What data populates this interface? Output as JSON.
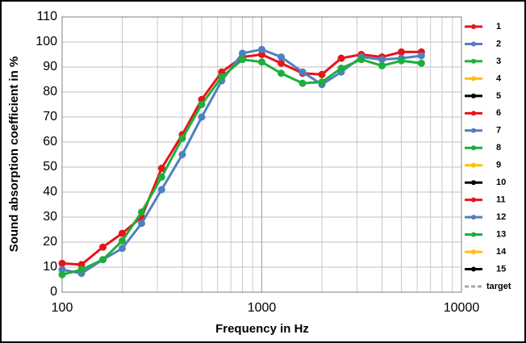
{
  "chart_data": {
    "type": "line",
    "xlabel": "Frequency in Hz",
    "ylabel": "Sound absorption coefficient in %",
    "x": [
      100,
      125,
      160,
      200,
      250,
      315,
      400,
      500,
      630,
      800,
      1000,
      1250,
      1600,
      2000,
      2500,
      3150,
      4000,
      5000,
      6300
    ],
    "series": [
      {
        "name": "1",
        "color": "#e8141c",
        "values": [
          11.5,
          11,
          18,
          23.5,
          30,
          49.5,
          63,
          77,
          88,
          94,
          95,
          91.5,
          87.5,
          87,
          93.5,
          95,
          94,
          96,
          96
        ]
      },
      {
        "name": "2",
        "color": "#4f81bd",
        "values": [
          9,
          7.5,
          13,
          17.5,
          27.5,
          41,
          55,
          70,
          84.5,
          95.5,
          97,
          94,
          88,
          83,
          88,
          94,
          93,
          93.5,
          94.5
        ]
      },
      {
        "name": "3",
        "color": "#1fae3c",
        "values": [
          7,
          9,
          13,
          20.5,
          32,
          46,
          61.5,
          75,
          86,
          93,
          92,
          87.5,
          83.5,
          84,
          89.5,
          93,
          90.5,
          92.5,
          91.5
        ]
      },
      {
        "name": "4",
        "color": "#ffc000",
        "values": [
          null,
          null,
          null,
          null,
          null,
          null,
          null,
          null,
          null,
          null,
          null,
          null,
          null,
          null,
          null,
          null,
          null,
          null,
          null
        ]
      },
      {
        "name": "5",
        "color": "#000000",
        "values": [
          null,
          null,
          null,
          null,
          null,
          null,
          null,
          null,
          null,
          null,
          null,
          null,
          null,
          null,
          null,
          null,
          null,
          null,
          null
        ]
      },
      {
        "name": "6",
        "color": "#e8141c",
        "values": [
          null,
          null,
          null,
          null,
          null,
          null,
          null,
          null,
          null,
          null,
          null,
          null,
          null,
          null,
          null,
          null,
          null,
          null,
          null
        ]
      },
      {
        "name": "7",
        "color": "#4f81bd",
        "values": [
          null,
          null,
          null,
          null,
          null,
          null,
          null,
          null,
          null,
          null,
          null,
          null,
          null,
          null,
          null,
          null,
          null,
          null,
          null
        ]
      },
      {
        "name": "8",
        "color": "#1fae3c",
        "values": [
          null,
          null,
          null,
          null,
          null,
          null,
          null,
          null,
          null,
          null,
          null,
          null,
          null,
          null,
          null,
          null,
          null,
          null,
          null
        ]
      },
      {
        "name": "9",
        "color": "#ffc000",
        "values": [
          null,
          null,
          null,
          null,
          null,
          null,
          null,
          null,
          null,
          null,
          null,
          null,
          null,
          null,
          null,
          null,
          null,
          null,
          null
        ]
      },
      {
        "name": "10",
        "color": "#000000",
        "values": [
          null,
          null,
          null,
          null,
          null,
          null,
          null,
          null,
          null,
          null,
          null,
          null,
          null,
          null,
          null,
          null,
          null,
          null,
          null
        ]
      },
      {
        "name": "11",
        "color": "#e8141c",
        "values": [
          null,
          null,
          null,
          null,
          null,
          null,
          null,
          null,
          null,
          null,
          null,
          null,
          null,
          null,
          null,
          null,
          null,
          null,
          null
        ]
      },
      {
        "name": "12",
        "color": "#4f81bd",
        "values": [
          null,
          null,
          null,
          null,
          null,
          null,
          null,
          null,
          null,
          null,
          null,
          null,
          null,
          null,
          null,
          null,
          null,
          null,
          null
        ]
      },
      {
        "name": "13",
        "color": "#1fae3c",
        "values": [
          null,
          null,
          null,
          null,
          null,
          null,
          null,
          null,
          null,
          null,
          null,
          null,
          null,
          null,
          null,
          null,
          null,
          null,
          null
        ]
      },
      {
        "name": "14",
        "color": "#ffc000",
        "values": [
          null,
          null,
          null,
          null,
          null,
          null,
          null,
          null,
          null,
          null,
          null,
          null,
          null,
          null,
          null,
          null,
          null,
          null,
          null
        ]
      },
      {
        "name": "15",
        "color": "#000000",
        "values": [
          null,
          null,
          null,
          null,
          null,
          null,
          null,
          null,
          null,
          null,
          null,
          null,
          null,
          null,
          null,
          null,
          null,
          null,
          null
        ]
      },
      {
        "name": "target",
        "color": "#a6a6a6",
        "dashed": true,
        "values": [
          null,
          null,
          null,
          null,
          null,
          null,
          null,
          null,
          null,
          null,
          null,
          null,
          null,
          null,
          null,
          null,
          null,
          null,
          null
        ]
      }
    ],
    "xscale": "log",
    "xlim": [
      100,
      10000
    ],
    "xticks": [
      100,
      1000,
      10000
    ],
    "xminorticks": [
      200,
      300,
      400,
      500,
      600,
      700,
      800,
      900,
      2000,
      3000,
      4000,
      5000,
      6000,
      7000,
      8000,
      9000
    ],
    "ylim": [
      0,
      110
    ],
    "yticks": [
      0,
      10,
      20,
      30,
      40,
      50,
      60,
      70,
      80,
      90,
      100,
      110
    ],
    "grid": true,
    "legend": "right"
  }
}
